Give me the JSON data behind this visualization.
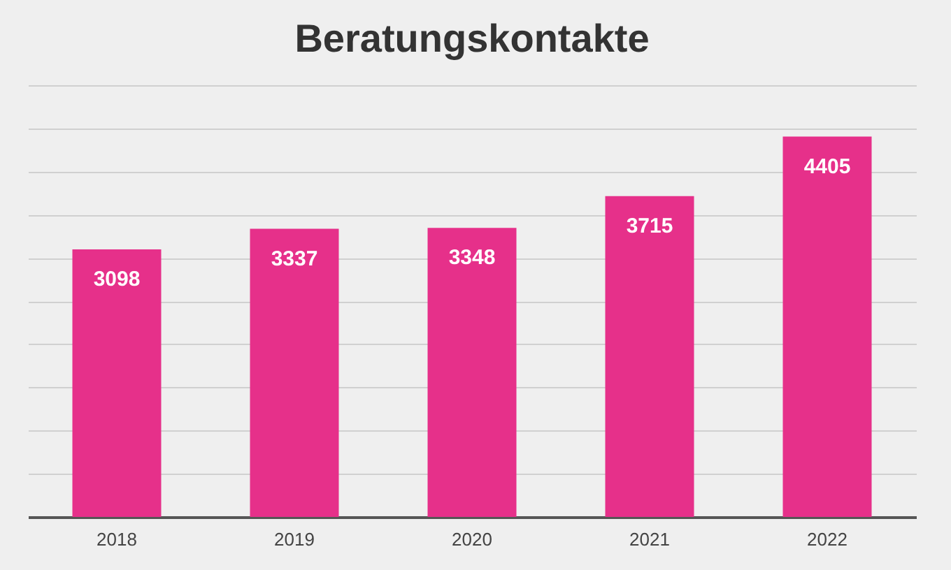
{
  "chart_data": {
    "type": "bar",
    "title": "Beratungskontakte",
    "categories": [
      "2018",
      "2019",
      "2020",
      "2021",
      "2022"
    ],
    "values": [
      3098,
      3337,
      3348,
      3715,
      4405
    ],
    "color": "#e6308a",
    "ylim": [
      0,
      5000
    ],
    "yticks": [
      {
        "value": 0,
        "label": null
      },
      {
        "value": 500,
        "label": null
      },
      {
        "value": 1000,
        "label": null
      },
      {
        "value": 1500,
        "label": null
      },
      {
        "value": 2000,
        "label": null
      },
      {
        "value": 2500,
        "label": null
      },
      {
        "value": 3000,
        "label": null
      },
      {
        "value": 3500,
        "label": null
      },
      {
        "value": 4000,
        "label": null
      },
      {
        "value": 4500,
        "label": null
      },
      {
        "value": 5000,
        "label": null
      }
    ],
    "grid": "y",
    "tick_labels": "x",
    "data_labels": true
  }
}
